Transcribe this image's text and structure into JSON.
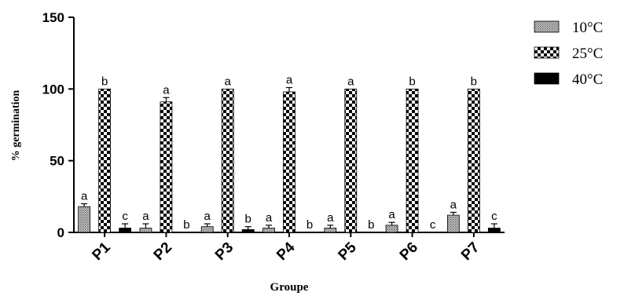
{
  "chart_data": {
    "type": "bar",
    "xlabel": "Groupe",
    "ylabel": "% germination",
    "ylim": [
      0,
      150
    ],
    "yticks": [
      0,
      50,
      100,
      150
    ],
    "categories": [
      "P1",
      "P2",
      "P3",
      "P4",
      "P5",
      "P6",
      "P7"
    ],
    "series": [
      {
        "name": "10°C",
        "pattern": "grey-dots",
        "values": [
          18,
          3,
          4,
          3,
          3,
          5,
          12
        ],
        "errors": [
          2,
          3,
          2,
          2,
          2,
          2,
          2
        ],
        "labels": [
          "a",
          "a",
          "a",
          "a",
          "a",
          "a",
          "a"
        ]
      },
      {
        "name": "25°C",
        "pattern": "checkerboard",
        "values": [
          100,
          91,
          100,
          98,
          100,
          100,
          100
        ],
        "errors": [
          0,
          3,
          0,
          3,
          0,
          0,
          0
        ],
        "labels": [
          "b",
          "a",
          "a",
          "a",
          "a",
          "b",
          "b"
        ]
      },
      {
        "name": "40°C",
        "pattern": "solid-black",
        "values": [
          3,
          0,
          2,
          0,
          0,
          0,
          3
        ],
        "errors": [
          3,
          0,
          2,
          0,
          0,
          0,
          3
        ],
        "labels": [
          "c",
          "b",
          "b",
          "b",
          "b",
          "c",
          "c"
        ]
      }
    ],
    "legend_position": "top-right",
    "grid": false
  }
}
